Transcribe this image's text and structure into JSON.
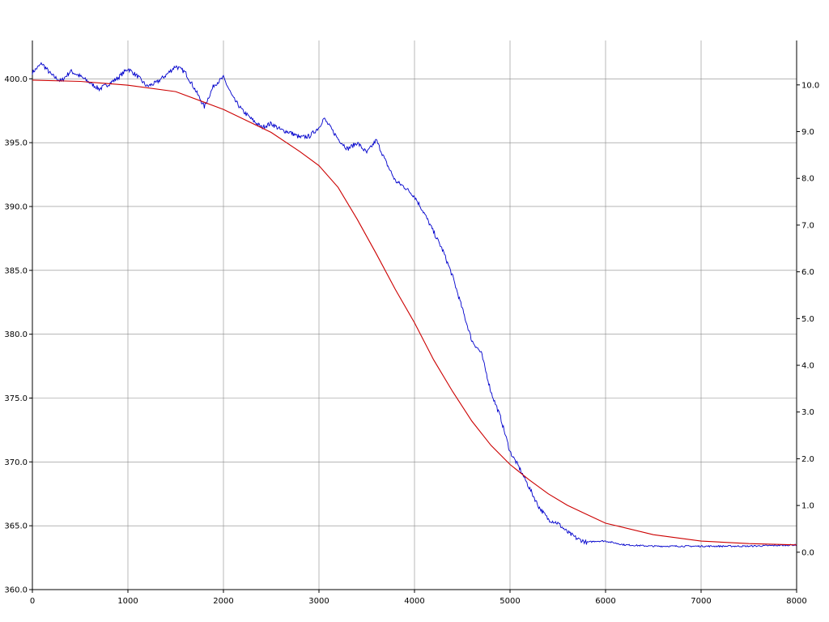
{
  "chart_data": {
    "type": "line",
    "title": "",
    "xlabel": "",
    "ylabel": "",
    "xlim": [
      0,
      8000
    ],
    "ylim_left": [
      360,
      403
    ],
    "ylim_right": [
      -0.8,
      10.95
    ],
    "x_ticks": [
      0,
      1000,
      2000,
      3000,
      4000,
      5000,
      6000,
      7000,
      8000
    ],
    "x_tick_labels": [
      "0",
      "1000",
      "2000",
      "3000",
      "4000",
      "5000",
      "6000",
      "7000",
      "8000"
    ],
    "y_left_ticks": [
      360,
      365,
      370,
      375,
      380,
      385,
      390,
      395,
      400
    ],
    "y_left_tick_labels": [
      "360.0",
      "365.0",
      "370.0",
      "375.0",
      "380.0",
      "385.0",
      "390.0",
      "395.0",
      "400.0"
    ],
    "y_right_ticks": [
      0,
      1,
      2,
      3,
      4,
      5,
      6,
      7,
      8,
      9,
      10
    ],
    "y_right_tick_labels": [
      "0.0",
      "1.0",
      "2.0",
      "3.0",
      "4.0",
      "5.0",
      "6.0",
      "7.0",
      "8.0",
      "9.0",
      "10.0"
    ],
    "grid": true,
    "legend": "none",
    "series": [
      {
        "color": "#0000cc",
        "axis": "left",
        "x": [
          0,
          100,
          200,
          300,
          400,
          500,
          600,
          700,
          800,
          900,
          1000,
          1100,
          1200,
          1300,
          1400,
          1500,
          1600,
          1700,
          1800,
          1900,
          2000,
          2100,
          2200,
          2300,
          2400,
          2500,
          2600,
          2700,
          2800,
          2900,
          3000,
          3050,
          3100,
          3200,
          3300,
          3400,
          3500,
          3600,
          3700,
          3800,
          3900,
          4000,
          4100,
          4200,
          4300,
          4400,
          4500,
          4600,
          4700,
          4800,
          4900,
          5000,
          5100,
          5200,
          5300,
          5400,
          5500,
          5600,
          5700,
          5800,
          5900,
          6000,
          6200,
          6500,
          7000,
          7500,
          8000
        ],
        "y": [
          400.5,
          401.2,
          400.3,
          399.8,
          400.6,
          400.2,
          399.7,
          399.2,
          399.6,
          400.1,
          400.8,
          400.2,
          399.4,
          399.7,
          400.3,
          401.0,
          400.5,
          399.2,
          397.8,
          399.5,
          400.1,
          398.5,
          397.5,
          396.8,
          396.2,
          396.5,
          396.0,
          395.8,
          395.4,
          395.5,
          396.2,
          396.9,
          396.4,
          395.3,
          394.5,
          395.0,
          394.2,
          395.2,
          393.5,
          392.0,
          391.5,
          390.8,
          389.5,
          388.0,
          386.5,
          384.5,
          382.0,
          379.5,
          378.5,
          375.5,
          373.5,
          370.8,
          369.5,
          368.0,
          366.5,
          365.5,
          365.2,
          364.5,
          364.0,
          363.7,
          363.8,
          363.8,
          363.5,
          363.4,
          363.4,
          363.4,
          363.5
        ]
      },
      {
        "color": "#cc0000",
        "axis": "left",
        "x": [
          0,
          500,
          1000,
          1500,
          2000,
          2500,
          2800,
          3000,
          3200,
          3400,
          3600,
          3800,
          4000,
          4200,
          4400,
          4600,
          4800,
          5000,
          5200,
          5400,
          5600,
          5800,
          6000,
          6500,
          7000,
          7500,
          8000
        ],
        "y": [
          399.9,
          399.8,
          399.5,
          399.0,
          397.6,
          395.8,
          394.3,
          393.2,
          391.5,
          389.0,
          386.3,
          383.5,
          380.9,
          378.0,
          375.5,
          373.2,
          371.3,
          369.8,
          368.6,
          367.5,
          366.6,
          365.9,
          365.2,
          364.3,
          363.8,
          363.6,
          363.5
        ]
      }
    ]
  }
}
